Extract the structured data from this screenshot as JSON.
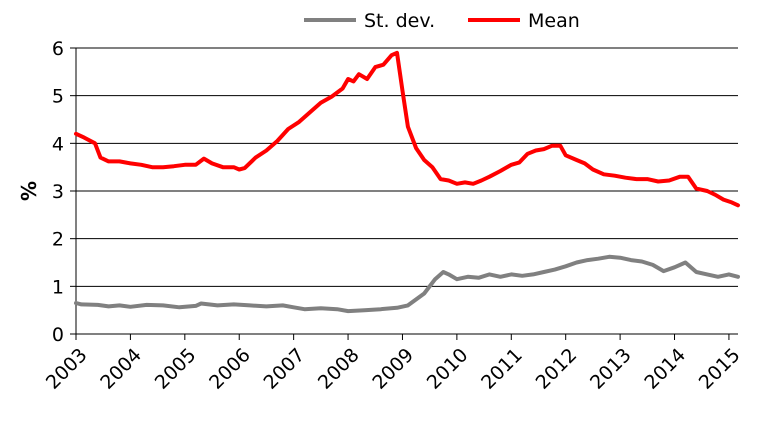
{
  "chart_data": {
    "type": "line",
    "title": "",
    "xlabel": "",
    "ylabel": "%",
    "ylim": [
      0,
      6
    ],
    "xlim": [
      2003.0,
      2015.1667
    ],
    "grid": "horizontal",
    "legend_position": "top-center",
    "y_ticks": [
      "0",
      "1",
      "2",
      "3",
      "4",
      "5",
      "6"
    ],
    "x_ticks": [
      "2003",
      "2004",
      "2005",
      "2006",
      "2007",
      "2008",
      "2009",
      "2010",
      "2011",
      "2012",
      "2013",
      "2014",
      "2015"
    ],
    "series": [
      {
        "name": "St. dev.",
        "color": "#808080",
        "points": [
          [
            2003.0,
            0.65
          ],
          [
            2003.1,
            0.62
          ],
          [
            2003.4,
            0.61
          ],
          [
            2003.6,
            0.58
          ],
          [
            2003.8,
            0.6
          ],
          [
            2004.0,
            0.57
          ],
          [
            2004.3,
            0.61
          ],
          [
            2004.6,
            0.6
          ],
          [
            2004.9,
            0.56
          ],
          [
            2005.2,
            0.59
          ],
          [
            2005.3,
            0.64
          ],
          [
            2005.6,
            0.6
          ],
          [
            2005.9,
            0.62
          ],
          [
            2006.2,
            0.6
          ],
          [
            2006.5,
            0.58
          ],
          [
            2006.8,
            0.6
          ],
          [
            2007.0,
            0.56
          ],
          [
            2007.2,
            0.52
          ],
          [
            2007.5,
            0.54
          ],
          [
            2007.8,
            0.52
          ],
          [
            2008.0,
            0.48
          ],
          [
            2008.3,
            0.5
          ],
          [
            2008.6,
            0.52
          ],
          [
            2008.9,
            0.55
          ],
          [
            2009.1,
            0.6
          ],
          [
            2009.4,
            0.85
          ],
          [
            2009.6,
            1.15
          ],
          [
            2009.75,
            1.3
          ],
          [
            2009.85,
            1.25
          ],
          [
            2010.0,
            1.15
          ],
          [
            2010.2,
            1.2
          ],
          [
            2010.4,
            1.18
          ],
          [
            2010.6,
            1.25
          ],
          [
            2010.8,
            1.2
          ],
          [
            2011.0,
            1.25
          ],
          [
            2011.2,
            1.22
          ],
          [
            2011.4,
            1.25
          ],
          [
            2011.6,
            1.3
          ],
          [
            2011.8,
            1.35
          ],
          [
            2012.0,
            1.42
          ],
          [
            2012.2,
            1.5
          ],
          [
            2012.4,
            1.55
          ],
          [
            2012.6,
            1.58
          ],
          [
            2012.8,
            1.62
          ],
          [
            2013.0,
            1.6
          ],
          [
            2013.2,
            1.55
          ],
          [
            2013.4,
            1.52
          ],
          [
            2013.6,
            1.45
          ],
          [
            2013.8,
            1.32
          ],
          [
            2014.0,
            1.4
          ],
          [
            2014.2,
            1.5
          ],
          [
            2014.4,
            1.3
          ],
          [
            2014.6,
            1.25
          ],
          [
            2014.8,
            1.2
          ],
          [
            2015.0,
            1.25
          ],
          [
            2015.1667,
            1.2
          ]
        ]
      },
      {
        "name": "Mean",
        "color": "#ff0000",
        "points": [
          [
            2003.0,
            4.2
          ],
          [
            2003.15,
            4.12
          ],
          [
            2003.35,
            4.0
          ],
          [
            2003.45,
            3.7
          ],
          [
            2003.6,
            3.62
          ],
          [
            2003.8,
            3.62
          ],
          [
            2004.0,
            3.58
          ],
          [
            2004.2,
            3.55
          ],
          [
            2004.4,
            3.5
          ],
          [
            2004.6,
            3.5
          ],
          [
            2004.8,
            3.52
          ],
          [
            2005.0,
            3.55
          ],
          [
            2005.2,
            3.55
          ],
          [
            2005.35,
            3.68
          ],
          [
            2005.5,
            3.58
          ],
          [
            2005.7,
            3.5
          ],
          [
            2005.9,
            3.5
          ],
          [
            2006.0,
            3.45
          ],
          [
            2006.1,
            3.48
          ],
          [
            2006.3,
            3.7
          ],
          [
            2006.5,
            3.85
          ],
          [
            2006.7,
            4.05
          ],
          [
            2006.9,
            4.3
          ],
          [
            2007.1,
            4.45
          ],
          [
            2007.3,
            4.65
          ],
          [
            2007.5,
            4.85
          ],
          [
            2007.7,
            4.98
          ],
          [
            2007.9,
            5.15
          ],
          [
            2008.0,
            5.35
          ],
          [
            2008.1,
            5.3
          ],
          [
            2008.2,
            5.45
          ],
          [
            2008.35,
            5.35
          ],
          [
            2008.5,
            5.6
          ],
          [
            2008.65,
            5.65
          ],
          [
            2008.8,
            5.85
          ],
          [
            2008.9,
            5.9
          ],
          [
            2009.0,
            5.1
          ],
          [
            2009.1,
            4.35
          ],
          [
            2009.25,
            3.9
          ],
          [
            2009.4,
            3.65
          ],
          [
            2009.55,
            3.5
          ],
          [
            2009.7,
            3.25
          ],
          [
            2009.85,
            3.22
          ],
          [
            2010.0,
            3.15
          ],
          [
            2010.15,
            3.18
          ],
          [
            2010.3,
            3.15
          ],
          [
            2010.45,
            3.22
          ],
          [
            2010.6,
            3.3
          ],
          [
            2010.8,
            3.42
          ],
          [
            2011.0,
            3.55
          ],
          [
            2011.15,
            3.6
          ],
          [
            2011.3,
            3.78
          ],
          [
            2011.45,
            3.85
          ],
          [
            2011.6,
            3.88
          ],
          [
            2011.75,
            3.95
          ],
          [
            2011.9,
            3.95
          ],
          [
            2012.0,
            3.75
          ],
          [
            2012.2,
            3.65
          ],
          [
            2012.35,
            3.58
          ],
          [
            2012.5,
            3.45
          ],
          [
            2012.7,
            3.35
          ],
          [
            2012.9,
            3.32
          ],
          [
            2013.1,
            3.28
          ],
          [
            2013.3,
            3.25
          ],
          [
            2013.5,
            3.25
          ],
          [
            2013.7,
            3.2
          ],
          [
            2013.9,
            3.22
          ],
          [
            2014.1,
            3.3
          ],
          [
            2014.25,
            3.3
          ],
          [
            2014.4,
            3.05
          ],
          [
            2014.6,
            3.0
          ],
          [
            2014.75,
            2.92
          ],
          [
            2014.9,
            2.82
          ],
          [
            2015.05,
            2.76
          ],
          [
            2015.1667,
            2.7
          ]
        ]
      }
    ]
  }
}
